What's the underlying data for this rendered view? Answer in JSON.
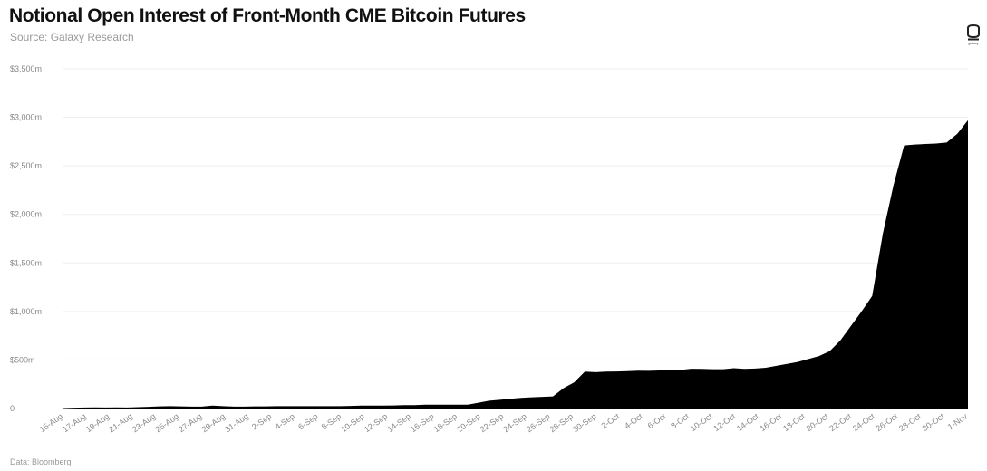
{
  "header": {
    "title": "Notional Open Interest of Front-Month CME Bitcoin Futures",
    "subtitle": "Source: Galaxy Research",
    "logo_text": "galaxy",
    "logo_icon": "galaxy-logo-icon"
  },
  "footer": {
    "note": "Data: Bloomberg"
  },
  "colors": {
    "area_fill": "#000000",
    "gridline": "#eeeeee",
    "tick_text": "#888888"
  },
  "chart_data": {
    "type": "area",
    "title": "Notional Open Interest of Front-Month CME Bitcoin Futures",
    "subtitle": "Source: Galaxy Research",
    "xlabel": "",
    "ylabel": "",
    "grid": true,
    "legend": "none",
    "ylim": [
      0,
      3500
    ],
    "y_ticks": [
      0,
      500,
      1000,
      1500,
      2000,
      2500,
      3000,
      3500
    ],
    "y_tick_labels": [
      "0",
      "$500m",
      "$1,000m",
      "$1,500m",
      "$2,000m",
      "$2,500m",
      "$3,000m",
      "$3,500m"
    ],
    "x_tick_labels": [
      "15-Aug",
      "17-Aug",
      "19-Aug",
      "21-Aug",
      "23-Aug",
      "25-Aug",
      "27-Aug",
      "29-Aug",
      "31-Aug",
      "2-Sep",
      "4-Sep",
      "6-Sep",
      "8-Sep",
      "10-Sep",
      "12-Sep",
      "14-Sep",
      "16-Sep",
      "18-Sep",
      "20-Sep",
      "22-Sep",
      "24-Sep",
      "26-Sep",
      "28-Sep",
      "30-Sep",
      "2-Oct",
      "4-Oct",
      "6-Oct",
      "8-Oct",
      "10-Oct",
      "12-Oct",
      "14-Oct",
      "16-Oct",
      "18-Oct",
      "20-Oct",
      "22-Oct",
      "24-Oct",
      "26-Oct",
      "28-Oct",
      "30-Oct",
      "1-Nov"
    ],
    "series": [
      {
        "values": [
          5,
          8,
          10,
          12,
          10,
          12,
          10,
          14,
          18,
          22,
          25,
          22,
          20,
          20,
          30,
          25,
          20,
          20,
          22,
          22,
          25,
          25,
          25,
          25,
          25,
          25,
          25,
          27,
          30,
          30,
          30,
          32,
          35,
          35,
          40,
          40,
          40,
          40,
          40,
          60,
          80,
          90,
          100,
          110,
          115,
          120,
          125,
          210,
          270,
          380,
          375,
          380,
          382,
          385,
          390,
          388,
          392,
          395,
          398,
          410,
          408,
          405,
          405,
          415,
          408,
          412,
          420,
          440,
          460,
          480,
          510,
          540,
          590,
          700,
          850,
          1000,
          1160,
          1800,
          2300,
          2710,
          2720,
          2725,
          2730,
          2740,
          2830,
          2970
        ]
      }
    ]
  }
}
